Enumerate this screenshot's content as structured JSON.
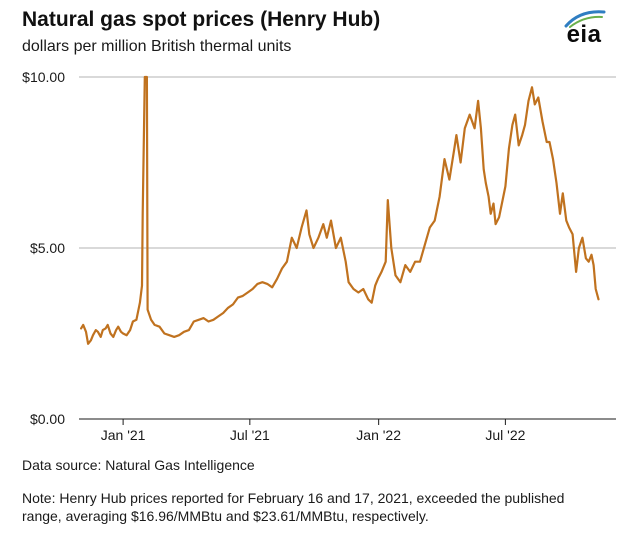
{
  "header": {
    "title": "Natural gas spot prices (Henry Hub)",
    "subtitle": "dollars per million British thermal units",
    "logo_text": "eia"
  },
  "chart_data": {
    "type": "line",
    "title": "Natural gas spot prices (Henry Hub)",
    "subtitle": "dollars per million British thermal units",
    "xlabel": "",
    "ylabel": "",
    "ylim": [
      0,
      10
    ],
    "xlim": [
      "2020-11-13",
      "2022-12-20"
    ],
    "y_ticks": [
      {
        "value": 0,
        "label": "$0.00"
      },
      {
        "value": 5,
        "label": "$5.00"
      },
      {
        "value": 10,
        "label": "$10.00"
      }
    ],
    "x_ticks": [
      {
        "date": "2021-01-15",
        "label": "Jan '21"
      },
      {
        "date": "2021-07-15",
        "label": "Jul '21"
      },
      {
        "date": "2022-01-15",
        "label": "Jan '22"
      },
      {
        "date": "2022-07-15",
        "label": "Jul '22"
      }
    ],
    "grid": "horizontal",
    "line_color": "#c0721f",
    "grid_color": "#b3b3b3",
    "series": [
      {
        "points": [
          [
            "2020-11-16",
            2.65
          ],
          [
            "2020-11-19",
            2.75
          ],
          [
            "2020-11-23",
            2.55
          ],
          [
            "2020-11-26",
            2.2
          ],
          [
            "2020-11-30",
            2.3
          ],
          [
            "2020-12-03",
            2.45
          ],
          [
            "2020-12-07",
            2.6
          ],
          [
            "2020-12-10",
            2.55
          ],
          [
            "2020-12-14",
            2.4
          ],
          [
            "2020-12-17",
            2.6
          ],
          [
            "2020-12-21",
            2.65
          ],
          [
            "2020-12-24",
            2.75
          ],
          [
            "2020-12-28",
            2.5
          ],
          [
            "2021-01-01",
            2.4
          ],
          [
            "2021-01-05",
            2.6
          ],
          [
            "2021-01-08",
            2.7
          ],
          [
            "2021-01-12",
            2.55
          ],
          [
            "2021-01-15",
            2.5
          ],
          [
            "2021-01-20",
            2.45
          ],
          [
            "2021-01-25",
            2.6
          ],
          [
            "2021-01-29",
            2.85
          ],
          [
            "2021-02-03",
            2.9
          ],
          [
            "2021-02-08",
            3.4
          ],
          [
            "2021-02-11",
            3.9
          ],
          [
            "2021-02-12",
            6.0
          ],
          [
            "2021-02-15",
            10.0
          ],
          [
            "2021-02-18",
            10.0
          ],
          [
            "2021-02-19",
            3.2
          ],
          [
            "2021-02-24",
            2.9
          ],
          [
            "2021-03-01",
            2.75
          ],
          [
            "2021-03-08",
            2.7
          ],
          [
            "2021-03-15",
            2.5
          ],
          [
            "2021-03-22",
            2.45
          ],
          [
            "2021-03-29",
            2.4
          ],
          [
            "2021-04-05",
            2.45
          ],
          [
            "2021-04-12",
            2.55
          ],
          [
            "2021-04-19",
            2.6
          ],
          [
            "2021-04-26",
            2.85
          ],
          [
            "2021-05-03",
            2.9
          ],
          [
            "2021-05-10",
            2.95
          ],
          [
            "2021-05-17",
            2.85
          ],
          [
            "2021-05-24",
            2.9
          ],
          [
            "2021-05-31",
            3.0
          ],
          [
            "2021-06-07",
            3.1
          ],
          [
            "2021-06-14",
            3.25
          ],
          [
            "2021-06-21",
            3.35
          ],
          [
            "2021-06-28",
            3.55
          ],
          [
            "2021-07-05",
            3.6
          ],
          [
            "2021-07-12",
            3.7
          ],
          [
            "2021-07-19",
            3.8
          ],
          [
            "2021-07-26",
            3.95
          ],
          [
            "2021-08-02",
            4.0
          ],
          [
            "2021-08-09",
            3.95
          ],
          [
            "2021-08-16",
            3.85
          ],
          [
            "2021-08-23",
            4.1
          ],
          [
            "2021-08-30",
            4.4
          ],
          [
            "2021-09-06",
            4.6
          ],
          [
            "2021-09-13",
            5.3
          ],
          [
            "2021-09-20",
            5.0
          ],
          [
            "2021-09-27",
            5.6
          ],
          [
            "2021-10-04",
            6.1
          ],
          [
            "2021-10-08",
            5.4
          ],
          [
            "2021-10-14",
            5.0
          ],
          [
            "2021-10-21",
            5.3
          ],
          [
            "2021-10-28",
            5.7
          ],
          [
            "2021-11-02",
            5.3
          ],
          [
            "2021-11-08",
            5.8
          ],
          [
            "2021-11-15",
            5.0
          ],
          [
            "2021-11-22",
            5.3
          ],
          [
            "2021-11-29",
            4.6
          ],
          [
            "2021-12-03",
            4.0
          ],
          [
            "2021-12-10",
            3.8
          ],
          [
            "2021-12-17",
            3.7
          ],
          [
            "2021-12-24",
            3.8
          ],
          [
            "2021-12-31",
            3.5
          ],
          [
            "2022-01-05",
            3.4
          ],
          [
            "2022-01-10",
            3.9
          ],
          [
            "2022-01-14",
            4.1
          ],
          [
            "2022-01-19",
            4.3
          ],
          [
            "2022-01-25",
            4.6
          ],
          [
            "2022-01-28",
            6.4
          ],
          [
            "2022-02-02",
            5.0
          ],
          [
            "2022-02-08",
            4.2
          ],
          [
            "2022-02-15",
            4.0
          ],
          [
            "2022-02-22",
            4.5
          ],
          [
            "2022-03-01",
            4.3
          ],
          [
            "2022-03-08",
            4.6
          ],
          [
            "2022-03-15",
            4.6
          ],
          [
            "2022-03-22",
            5.1
          ],
          [
            "2022-03-29",
            5.6
          ],
          [
            "2022-04-05",
            5.8
          ],
          [
            "2022-04-12",
            6.5
          ],
          [
            "2022-04-19",
            7.6
          ],
          [
            "2022-04-26",
            7.0
          ],
          [
            "2022-05-03",
            7.9
          ],
          [
            "2022-05-06",
            8.3
          ],
          [
            "2022-05-12",
            7.5
          ],
          [
            "2022-05-18",
            8.5
          ],
          [
            "2022-05-25",
            8.9
          ],
          [
            "2022-06-01",
            8.5
          ],
          [
            "2022-06-06",
            9.3
          ],
          [
            "2022-06-10",
            8.5
          ],
          [
            "2022-06-14",
            7.3
          ],
          [
            "2022-06-17",
            6.9
          ],
          [
            "2022-06-21",
            6.5
          ],
          [
            "2022-06-24",
            6.0
          ],
          [
            "2022-06-28",
            6.3
          ],
          [
            "2022-07-01",
            5.7
          ],
          [
            "2022-07-06",
            5.9
          ],
          [
            "2022-07-11",
            6.4
          ],
          [
            "2022-07-15",
            6.8
          ],
          [
            "2022-07-20",
            7.9
          ],
          [
            "2022-07-25",
            8.6
          ],
          [
            "2022-07-29",
            8.9
          ],
          [
            "2022-08-03",
            8.0
          ],
          [
            "2022-08-08",
            8.3
          ],
          [
            "2022-08-12",
            8.6
          ],
          [
            "2022-08-17",
            9.3
          ],
          [
            "2022-08-22",
            9.7
          ],
          [
            "2022-08-26",
            9.2
          ],
          [
            "2022-08-31",
            9.4
          ],
          [
            "2022-09-06",
            8.7
          ],
          [
            "2022-09-12",
            8.1
          ],
          [
            "2022-09-16",
            8.1
          ],
          [
            "2022-09-21",
            7.6
          ],
          [
            "2022-09-26",
            6.9
          ],
          [
            "2022-10-01",
            6.0
          ],
          [
            "2022-10-05",
            6.6
          ],
          [
            "2022-10-10",
            5.8
          ],
          [
            "2022-10-14",
            5.6
          ],
          [
            "2022-10-19",
            5.4
          ],
          [
            "2022-10-24",
            4.3
          ],
          [
            "2022-10-28",
            5.0
          ],
          [
            "2022-11-02",
            5.3
          ],
          [
            "2022-11-07",
            4.7
          ],
          [
            "2022-11-11",
            4.6
          ],
          [
            "2022-11-15",
            4.8
          ],
          [
            "2022-11-18",
            4.5
          ],
          [
            "2022-11-21",
            3.8
          ],
          [
            "2022-11-25",
            3.5
          ]
        ]
      }
    ]
  },
  "footer": {
    "source": "Data source: Natural Gas Intelligence",
    "note": "Note: Henry Hub prices reported for February 16 and 17, 2021, exceeded the published range, averaging $16.96/MMBtu and $23.61/MMBtu, respectively."
  }
}
